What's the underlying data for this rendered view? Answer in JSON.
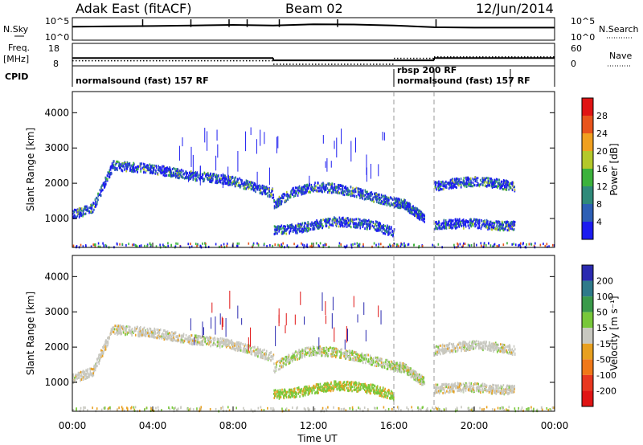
{
  "header": {
    "site": "Adak East (fitACF)",
    "beam": "Beam 02",
    "date": "12/Jun/2014"
  },
  "chart_data": [
    {
      "type": "line",
      "panel": "noise",
      "left_label": "N.Sky",
      "right_label": "N.Search",
      "yticks_left": [
        "10^5",
        "10^0"
      ],
      "yticks_right": [
        "10^5",
        "10^0"
      ],
      "x": [
        0,
        2,
        4,
        6,
        8,
        10,
        12,
        14,
        16,
        18,
        20,
        22,
        24
      ],
      "series": [
        {
          "values": [
            1200,
            1500,
            1800,
            2500,
            3500,
            2500,
            5000,
            4500,
            2500,
            900,
            700,
            700,
            700
          ]
        }
      ]
    },
    {
      "type": "line",
      "panel": "frequency",
      "left_label_1": "Freq.",
      "left_label_2": "[MHz]",
      "right_label": "Nave",
      "yticks_left": [
        "18",
        "8"
      ],
      "yticks_right": [
        "60",
        "0"
      ],
      "cpid_label": "CPID",
      "freq_steps": [
        {
          "t0": 0.0,
          "t1": 10.0,
          "freq": 11.5
        },
        {
          "t0": 10.0,
          "t1": 18.0,
          "freq": 10.2
        },
        {
          "t0": 18.0,
          "t1": 24.0,
          "freq": 11.5
        }
      ],
      "nave_steps": [
        {
          "t0": 0.0,
          "t1": 10.0,
          "nave": 12
        },
        {
          "t0": 10.0,
          "t1": 16.0,
          "nave": 0
        },
        {
          "t0": 16.0,
          "t1": 18.0,
          "nave": 20
        },
        {
          "t0": 18.0,
          "t1": 24.0,
          "nave": 25
        }
      ],
      "cpid_segments": [
        {
          "t0": 0.0,
          "t1": 16.0,
          "label": "normalsound (fast) 157 RF"
        },
        {
          "t0": 16.0,
          "t1": 18.0,
          "label": "rbsp 200 RF"
        },
        {
          "t0": 16.0,
          "t1": 21.8,
          "label": "normalsound (fast) 157 RF"
        }
      ]
    },
    {
      "type": "heatmap",
      "panel": "power",
      "ylabel": "Slant Range [km]",
      "ylim": [
        180,
        4600
      ],
      "yticks": [
        1000,
        2000,
        3000,
        4000
      ],
      "xlim": [
        0,
        24
      ],
      "colorbar_label": "Power [dB]",
      "colorbar_ticks": [
        4,
        8,
        12,
        16,
        20,
        24,
        28
      ],
      "colorbar_colors": [
        "#1c1cf0",
        "#2d5fb5",
        "#2f8a7a",
        "#3cb23c",
        "#b4c82a",
        "#f0a020",
        "#e8541c",
        "#e01414"
      ],
      "bands": [
        {
          "x": [
            0,
            1,
            2,
            3,
            4,
            5,
            6,
            7,
            8,
            9,
            10
          ],
          "y": [
            1100,
            1300,
            2500,
            2450,
            2400,
            2300,
            2200,
            2150,
            2050,
            1900,
            1700
          ]
        },
        {
          "x": [
            10,
            11,
            12,
            13,
            14,
            15,
            16,
            16.5,
            17,
            17.5
          ],
          "y": [
            1400,
            1750,
            1900,
            1850,
            1750,
            1600,
            1450,
            1400,
            1200,
            1000
          ]
        },
        {
          "x": [
            10,
            11,
            12,
            13,
            14,
            15,
            16
          ],
          "y": [
            650,
            700,
            800,
            900,
            880,
            800,
            600
          ]
        },
        {
          "x": [
            18,
            19,
            20,
            21,
            22
          ],
          "y": [
            1900,
            2000,
            2050,
            2000,
            1900
          ]
        },
        {
          "x": [
            18,
            19,
            20,
            21,
            22
          ],
          "y": [
            800,
            850,
            850,
            800,
            780
          ]
        }
      ]
    },
    {
      "type": "heatmap",
      "panel": "velocity",
      "ylabel": "Slant Range [km]",
      "ylim": [
        180,
        4600
      ],
      "yticks": [
        1000,
        2000,
        3000,
        4000
      ],
      "xlim": [
        0,
        24
      ],
      "colorbar_label": "Velocity [m s⁻¹]",
      "colorbar_ticks": [
        200,
        100,
        50,
        15,
        -15,
        -50,
        -100,
        -200
      ],
      "colorbar_colors": [
        "#2a2ab0",
        "#2f7a8a",
        "#3a9a4a",
        "#78c83a",
        "#c8c8c0",
        "#e8a020",
        "#f07818",
        "#e83820",
        "#e01414"
      ],
      "xticks": [
        "00:00",
        "04:00",
        "08:00",
        "12:00",
        "16:00",
        "20:00",
        "00:00"
      ],
      "xlabel": "Time UT"
    }
  ]
}
